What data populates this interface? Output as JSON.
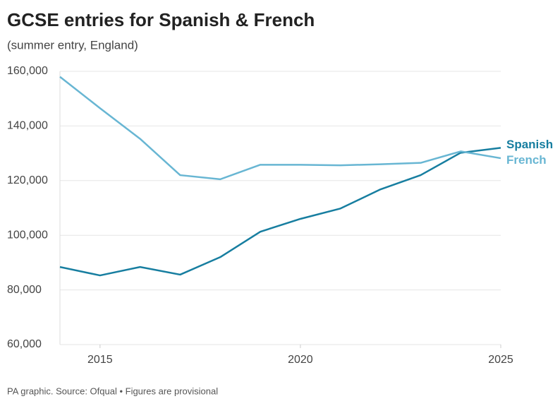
{
  "chart_data": {
    "type": "line",
    "title": "GCSE entries for Spanish & French",
    "subtitle": "(summer entry, England)",
    "source": "PA graphic. Source: Ofqual • Figures are provisional",
    "x": [
      2014,
      2015,
      2016,
      2017,
      2018,
      2019,
      2020,
      2021,
      2022,
      2023,
      2024,
      2025
    ],
    "series": [
      {
        "name": "Spanish",
        "color": "#177ea0",
        "values": [
          88400,
          85300,
          88400,
          85600,
          92000,
          101300,
          106000,
          109800,
          116800,
          122000,
          130200,
          132000
        ]
      },
      {
        "name": "French",
        "color": "#68b6d3",
        "values": [
          158000,
          146500,
          135300,
          122000,
          120500,
          125800,
          125800,
          125600,
          126000,
          126500,
          130700,
          128200
        ]
      }
    ],
    "xlim": [
      2014,
      2025
    ],
    "xticks": [
      2015,
      2020,
      2025
    ],
    "ylim": [
      60000,
      160000
    ],
    "yticks": [
      {
        "value": 60000,
        "label": "60,000"
      },
      {
        "value": 80000,
        "label": "80,000"
      },
      {
        "value": 100000,
        "label": "100,000"
      },
      {
        "value": 120000,
        "label": "120,000"
      },
      {
        "value": 140000,
        "label": "140,000"
      },
      {
        "value": 160000,
        "label": "160,000"
      }
    ],
    "grid": true
  }
}
